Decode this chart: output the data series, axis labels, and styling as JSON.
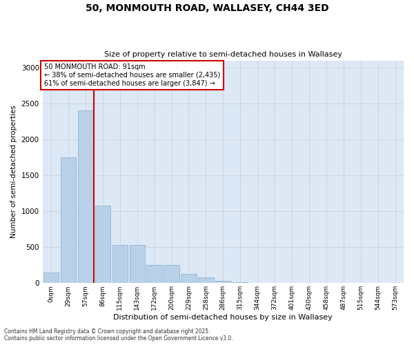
{
  "title_line1": "50, MONMOUTH ROAD, WALLASEY, CH44 3ED",
  "title_line2": "Size of property relative to semi-detached houses in Wallasey",
  "xlabel": "Distribution of semi-detached houses by size in Wallasey",
  "ylabel": "Number of semi-detached properties",
  "bar_labels": [
    "0sqm",
    "29sqm",
    "57sqm",
    "86sqm",
    "115sqm",
    "143sqm",
    "172sqm",
    "200sqm",
    "229sqm",
    "258sqm",
    "286sqm",
    "315sqm",
    "344sqm",
    "372sqm",
    "401sqm",
    "430sqm",
    "458sqm",
    "487sqm",
    "515sqm",
    "544sqm",
    "573sqm"
  ],
  "bar_values": [
    150,
    1750,
    2400,
    1075,
    530,
    530,
    250,
    250,
    130,
    75,
    30,
    15,
    3,
    0,
    0,
    0,
    0,
    0,
    0,
    0,
    0
  ],
  "bar_color": "#b8d0e8",
  "bar_edgecolor": "#8ab0cc",
  "vline_color": "#cc0000",
  "annotation_title": "50 MONMOUTH ROAD: 91sqm",
  "annotation_line2": "← 38% of semi-detached houses are smaller (2,435)",
  "annotation_line3": "61% of semi-detached houses are larger (3,847) →",
  "annotation_box_facecolor": "#ffffff",
  "annotation_box_edgecolor": "#cc0000",
  "ylim": [
    0,
    3100
  ],
  "yticks": [
    0,
    500,
    1000,
    1500,
    2000,
    2500,
    3000
  ],
  "grid_color": "#cccccc",
  "bg_color": "#dce8f5",
  "footer_line1": "Contains HM Land Registry data © Crown copyright and database right 2025.",
  "footer_line2": "Contains public sector information licensed under the Open Government Licence v3.0."
}
